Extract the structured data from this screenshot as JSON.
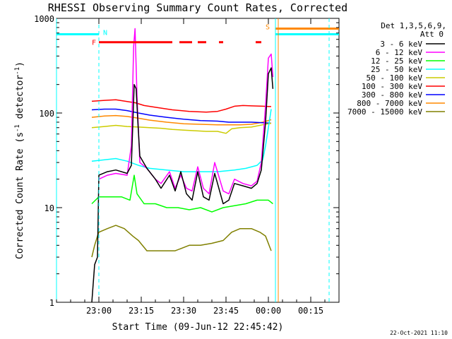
{
  "chart_data": {
    "type": "line",
    "title": "RHESSI Observing Summary Count Rates, Corrected",
    "xlabel": "Start Time (09-Jun-12 22:45:42)",
    "ylabel": "Corrected Count Rate (s⁻¹ detector⁻¹)",
    "ylabel_main": "Corrected Count Rate (s",
    "ylabel_mid": " detector",
    "ylabel_end": ")",
    "ylabel_sup": "-1",
    "y_scale": "log",
    "ylim": [
      1,
      1000
    ],
    "xlim_minutes": [
      -15,
      85
    ],
    "x_ticks": [
      {
        "label": "23:00",
        "t": 0
      },
      {
        "label": "23:15",
        "t": 15
      },
      {
        "label": "23:30",
        "t": 30
      },
      {
        "label": "23:45",
        "t": 45
      },
      {
        "label": "00:00",
        "t": 60
      },
      {
        "label": "00:15",
        "t": 75
      }
    ],
    "y_ticks": [
      {
        "label": "1000",
        "v": 1000
      },
      {
        "label": "100",
        "v": 100
      },
      {
        "label": "10",
        "v": 10
      },
      {
        "label": "1",
        "v": 1
      }
    ],
    "legend_header": [
      "Det 1,3,5,6,9,",
      "Att 0"
    ],
    "legend_position": "right",
    "series": [
      {
        "name": "3 - 6 keV",
        "color": "#000000",
        "points": [
          [
            -2.5,
            1
          ],
          [
            -1.5,
            2.5
          ],
          [
            -0.5,
            3
          ],
          [
            0,
            22
          ],
          [
            3,
            24
          ],
          [
            6,
            25
          ],
          [
            10,
            23
          ],
          [
            11.5,
            28
          ],
          [
            12.5,
            200
          ],
          [
            13.2,
            180
          ],
          [
            13.8,
            80
          ],
          [
            14.5,
            35
          ],
          [
            17,
            26
          ],
          [
            20,
            20
          ],
          [
            22,
            16
          ],
          [
            25,
            22
          ],
          [
            27,
            15
          ],
          [
            29,
            24
          ],
          [
            31,
            14
          ],
          [
            33,
            12
          ],
          [
            35,
            24
          ],
          [
            37,
            13
          ],
          [
            39,
            12
          ],
          [
            41,
            23
          ],
          [
            44,
            11
          ],
          [
            46,
            12
          ],
          [
            48,
            18
          ],
          [
            51,
            17
          ],
          [
            54,
            16
          ],
          [
            56,
            18
          ],
          [
            57.5,
            25
          ],
          [
            59,
            80
          ],
          [
            60,
            260
          ],
          [
            61,
            300
          ],
          [
            61.6,
            180
          ]
        ]
      },
      {
        "name": "6 - 12 keV",
        "color": "#ff00ff",
        "points": [
          [
            0,
            20
          ],
          [
            3,
            22
          ],
          [
            6,
            23
          ],
          [
            10,
            22
          ],
          [
            11.5,
            45
          ],
          [
            12.3,
            500
          ],
          [
            12.8,
            780
          ],
          [
            13.5,
            150
          ],
          [
            14.5,
            30
          ],
          [
            17,
            26
          ],
          [
            20,
            20
          ],
          [
            22,
            18
          ],
          [
            25,
            24
          ],
          [
            27,
            16
          ],
          [
            29,
            22
          ],
          [
            31,
            16
          ],
          [
            33,
            15
          ],
          [
            35,
            27
          ],
          [
            37,
            16
          ],
          [
            39,
            14
          ],
          [
            41,
            30
          ],
          [
            44,
            15
          ],
          [
            46,
            14
          ],
          [
            48,
            20
          ],
          [
            51,
            18
          ],
          [
            54,
            17
          ],
          [
            56,
            19
          ],
          [
            57.5,
            30
          ],
          [
            59,
            120
          ],
          [
            60,
            380
          ],
          [
            61,
            420
          ],
          [
            61.6,
            240
          ]
        ]
      },
      {
        "name": "12 - 25 keV",
        "color": "#00ff00",
        "points": [
          [
            -2.5,
            11
          ],
          [
            0,
            13
          ],
          [
            4,
            13
          ],
          [
            8,
            13
          ],
          [
            11,
            12
          ],
          [
            12.5,
            22
          ],
          [
            13.5,
            14
          ],
          [
            16,
            11
          ],
          [
            20,
            11
          ],
          [
            24,
            10
          ],
          [
            28,
            10
          ],
          [
            32,
            9.5
          ],
          [
            36,
            10
          ],
          [
            40,
            9
          ],
          [
            44,
            10
          ],
          [
            48,
            10.5
          ],
          [
            52,
            11
          ],
          [
            56,
            12
          ],
          [
            58,
            12
          ],
          [
            60,
            12
          ],
          [
            61.6,
            11
          ]
        ]
      },
      {
        "name": "25 - 50 keV",
        "color": "#00ffff",
        "points": [
          [
            -2.5,
            31
          ],
          [
            2,
            32
          ],
          [
            6,
            33
          ],
          [
            10,
            31
          ],
          [
            14,
            28
          ],
          [
            18,
            26
          ],
          [
            24,
            25
          ],
          [
            30,
            24
          ],
          [
            36,
            24
          ],
          [
            42,
            24
          ],
          [
            48,
            25
          ],
          [
            52,
            26
          ],
          [
            56,
            28
          ],
          [
            58,
            32
          ],
          [
            59,
            45
          ],
          [
            60,
            70
          ],
          [
            61,
            110
          ]
        ]
      },
      {
        "name": "50 - 100 keV",
        "color": "#cccc00",
        "points": [
          [
            -2.5,
            70
          ],
          [
            2,
            72
          ],
          [
            6,
            74
          ],
          [
            10,
            72
          ],
          [
            14,
            71
          ],
          [
            18,
            70
          ],
          [
            22,
            69
          ],
          [
            26,
            67
          ],
          [
            30,
            66
          ],
          [
            34,
            65
          ],
          [
            38,
            64
          ],
          [
            42,
            64
          ],
          [
            45,
            61
          ],
          [
            47,
            68
          ],
          [
            50,
            70
          ],
          [
            54,
            71
          ],
          [
            58,
            75
          ],
          [
            61,
            78
          ]
        ]
      },
      {
        "name": "100 - 300 keV",
        "color": "#ff0000",
        "points": [
          [
            -2.5,
            133
          ],
          [
            2,
            136
          ],
          [
            6,
            138
          ],
          [
            10,
            132
          ],
          [
            13,
            128
          ],
          [
            16,
            120
          ],
          [
            20,
            115
          ],
          [
            26,
            108
          ],
          [
            32,
            104
          ],
          [
            38,
            102
          ],
          [
            42,
            104
          ],
          [
            45,
            110
          ],
          [
            48,
            118
          ],
          [
            51,
            120
          ],
          [
            54,
            119
          ],
          [
            58,
            118
          ],
          [
            61,
            117
          ]
        ]
      },
      {
        "name": "300 - 800 keV",
        "color": "#0000ff",
        "points": [
          [
            -2.5,
            108
          ],
          [
            2,
            110
          ],
          [
            6,
            110
          ],
          [
            10,
            106
          ],
          [
            14,
            100
          ],
          [
            18,
            95
          ],
          [
            24,
            90
          ],
          [
            30,
            86
          ],
          [
            36,
            83
          ],
          [
            42,
            82
          ],
          [
            46,
            80
          ],
          [
            50,
            80
          ],
          [
            54,
            80
          ],
          [
            58,
            79
          ],
          [
            61,
            78
          ]
        ]
      },
      {
        "name": "800 - 7000 keV",
        "color": "#ff8800",
        "points": [
          [
            -2.5,
            90
          ],
          [
            2,
            93
          ],
          [
            6,
            94
          ],
          [
            10,
            92
          ],
          [
            14,
            88
          ],
          [
            18,
            84
          ],
          [
            24,
            80
          ],
          [
            30,
            77
          ],
          [
            36,
            76
          ],
          [
            42,
            75
          ],
          [
            46,
            75
          ],
          [
            50,
            75
          ],
          [
            54,
            76
          ],
          [
            58,
            80
          ],
          [
            61,
            85
          ]
        ]
      },
      {
        "name": "7000 - 15000 keV",
        "color": "#808000",
        "points": [
          [
            -2.5,
            3
          ],
          [
            -1.5,
            4
          ],
          [
            -0.5,
            5
          ],
          [
            0,
            5.5
          ],
          [
            3,
            6
          ],
          [
            6,
            6.5
          ],
          [
            9,
            6
          ],
          [
            12,
            5
          ],
          [
            14,
            4.5
          ],
          [
            17,
            3.5
          ],
          [
            22,
            3.5
          ],
          [
            27,
            3.5
          ],
          [
            32,
            4
          ],
          [
            36,
            4
          ],
          [
            40,
            4.2
          ],
          [
            44,
            4.5
          ],
          [
            47,
            5.5
          ],
          [
            50,
            6
          ],
          [
            54,
            6
          ],
          [
            57,
            5.5
          ],
          [
            59,
            5
          ],
          [
            61,
            3.5
          ]
        ]
      }
    ],
    "flare_marker": {
      "label": "F",
      "color": "#ff0000",
      "y_value": 560,
      "segments": [
        [
          0,
          12
        ],
        [
          12,
          26
        ],
        [
          28.5,
          33
        ],
        [
          35,
          38
        ],
        [
          42.5,
          44
        ],
        [
          55.5,
          57.5
        ]
      ]
    },
    "night_marker": {
      "label": "N",
      "color": "#00ffff",
      "y_value": 680,
      "segments": [
        [
          -15,
          0
        ],
        [
          62.5,
          85
        ]
      ]
    },
    "saa_marker": {
      "label": "S",
      "color": "#ff8800",
      "y_value": 780,
      "segments": [
        [
          62.5,
          85
        ]
      ]
    },
    "vertical_lines": [
      {
        "t": -15,
        "color": "#00ffff",
        "style": "solid"
      },
      {
        "t": 0,
        "color": "#00ffff",
        "style": "dashed"
      },
      {
        "t": 62.5,
        "color": "#00ffff",
        "style": "solid"
      },
      {
        "t": 63.5,
        "color": "#ff8800",
        "style": "solid"
      },
      {
        "t": 81.5,
        "color": "#00ffff",
        "style": "dashed"
      }
    ]
  },
  "footer_date": "22-Oct-2021 11:10"
}
